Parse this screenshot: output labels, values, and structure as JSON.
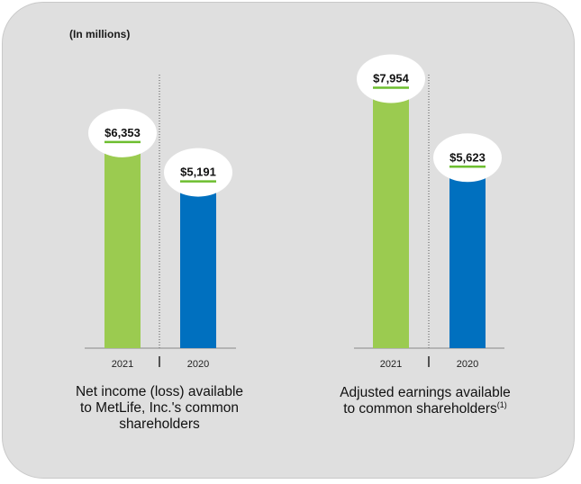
{
  "units_label": "(In millions)",
  "chart_data": [
    {
      "type": "bar",
      "title": "Net income (loss) available to MetLife, Inc.'s common shareholders",
      "caption_lines": [
        "Net income (loss) available",
        "to MetLife, Inc.'s common",
        "shareholders"
      ],
      "categories": [
        "2021",
        "2020"
      ],
      "values": [
        6353,
        5191
      ],
      "value_labels": [
        "$6,353",
        "$5,191"
      ],
      "colors": [
        "#9bcb50",
        "#0070bf"
      ],
      "ylim": [
        0,
        8500
      ],
      "xlabel": "",
      "ylabel": "",
      "grid": false
    },
    {
      "type": "bar",
      "title": "Adjusted earnings available to common shareholders(1)",
      "caption_lines": [
        "Adjusted earnings available",
        "to common shareholders"
      ],
      "caption_footnote": "(1)",
      "categories": [
        "2021",
        "2020"
      ],
      "values": [
        7954,
        5623
      ],
      "value_labels": [
        "$7,954",
        "$5,623"
      ],
      "colors": [
        "#9bcb50",
        "#0070bf"
      ],
      "ylim": [
        0,
        8500
      ],
      "xlabel": "",
      "ylabel": "",
      "grid": false
    }
  ],
  "accent_underline": "#6dbe2f"
}
